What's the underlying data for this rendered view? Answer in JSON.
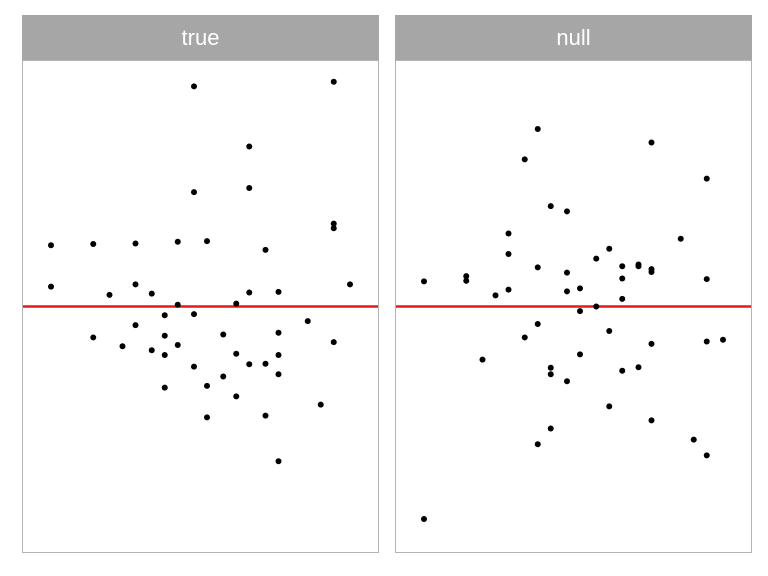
{
  "chart_data": [
    {
      "type": "scatter",
      "panel_title": "true",
      "ylim": [
        -40,
        40
      ],
      "xlim": [
        0,
        100
      ],
      "grid": false,
      "reference_line": {
        "y": 0,
        "color": "#e41a1c"
      },
      "point_color": "#000000",
      "points": [
        {
          "x": 4,
          "y": 10.5
        },
        {
          "x": 4,
          "y": 3.4
        },
        {
          "x": 17,
          "y": 10.7
        },
        {
          "x": 17,
          "y": -5.3
        },
        {
          "x": 22,
          "y": 2.0
        },
        {
          "x": 26,
          "y": -6.8
        },
        {
          "x": 30,
          "y": 10.8
        },
        {
          "x": 30,
          "y": 3.8
        },
        {
          "x": 30,
          "y": -3.2
        },
        {
          "x": 35,
          "y": 2.2
        },
        {
          "x": 35,
          "y": -7.5
        },
        {
          "x": 39,
          "y": -1.5
        },
        {
          "x": 39,
          "y": -5.0
        },
        {
          "x": 39,
          "y": -8.3
        },
        {
          "x": 39,
          "y": -13.9
        },
        {
          "x": 43,
          "y": 11.1
        },
        {
          "x": 43,
          "y": 0.3
        },
        {
          "x": 43,
          "y": -6.6
        },
        {
          "x": 48,
          "y": 37.7
        },
        {
          "x": 48,
          "y": 19.6
        },
        {
          "x": 48,
          "y": -1.3
        },
        {
          "x": 48,
          "y": -10.3
        },
        {
          "x": 52,
          "y": 11.2
        },
        {
          "x": 52,
          "y": -13.6
        },
        {
          "x": 52,
          "y": -19.0
        },
        {
          "x": 57,
          "y": -4.8
        },
        {
          "x": 57,
          "y": -12.0
        },
        {
          "x": 61,
          "y": 0.5
        },
        {
          "x": 61,
          "y": -8.1
        },
        {
          "x": 61,
          "y": -15.4
        },
        {
          "x": 65,
          "y": 27.4
        },
        {
          "x": 65,
          "y": 20.3
        },
        {
          "x": 65,
          "y": 2.4
        },
        {
          "x": 65,
          "y": -9.9
        },
        {
          "x": 70,
          "y": 9.7
        },
        {
          "x": 70,
          "y": -9.8
        },
        {
          "x": 70,
          "y": -18.7
        },
        {
          "x": 74,
          "y": 2.5
        },
        {
          "x": 74,
          "y": -4.5
        },
        {
          "x": 74,
          "y": -8.3
        },
        {
          "x": 74,
          "y": -11.6
        },
        {
          "x": 74,
          "y": -26.5
        },
        {
          "x": 83,
          "y": -2.5
        },
        {
          "x": 87,
          "y": -16.8
        },
        {
          "x": 91,
          "y": 38.5
        },
        {
          "x": 91,
          "y": 14.2
        },
        {
          "x": 91,
          "y": 13.4
        },
        {
          "x": 91,
          "y": -6.1
        },
        {
          "x": 96,
          "y": 3.8
        }
      ]
    },
    {
      "type": "scatter",
      "panel_title": "null",
      "ylim": [
        -40,
        40
      ],
      "xlim": [
        0,
        100
      ],
      "grid": false,
      "reference_line": {
        "y": 0,
        "color": "#e41a1c"
      },
      "point_color": "#000000",
      "points": [
        {
          "x": 4,
          "y": 4.3
        },
        {
          "x": 4,
          "y": -36.4
        },
        {
          "x": 17,
          "y": 5.2
        },
        {
          "x": 17,
          "y": 4.4
        },
        {
          "x": 22,
          "y": -9.1
        },
        {
          "x": 26,
          "y": 1.9
        },
        {
          "x": 30,
          "y": 12.5
        },
        {
          "x": 30,
          "y": 9.0
        },
        {
          "x": 30,
          "y": 2.9
        },
        {
          "x": 35,
          "y": 25.2
        },
        {
          "x": 35,
          "y": -5.3
        },
        {
          "x": 39,
          "y": 30.4
        },
        {
          "x": 39,
          "y": 6.7
        },
        {
          "x": 39,
          "y": -3.0
        },
        {
          "x": 39,
          "y": -23.6
        },
        {
          "x": 43,
          "y": 17.2
        },
        {
          "x": 43,
          "y": -10.5
        },
        {
          "x": 43,
          "y": -11.6
        },
        {
          "x": 43,
          "y": -20.9
        },
        {
          "x": 48,
          "y": 16.3
        },
        {
          "x": 48,
          "y": 5.8
        },
        {
          "x": 48,
          "y": 2.6
        },
        {
          "x": 48,
          "y": -12.8
        },
        {
          "x": 52,
          "y": 3.1
        },
        {
          "x": 52,
          "y": -0.8
        },
        {
          "x": 52,
          "y": -8.2
        },
        {
          "x": 57,
          "y": 8.2
        },
        {
          "x": 57,
          "y": 0.0
        },
        {
          "x": 61,
          "y": 9.9
        },
        {
          "x": 61,
          "y": -4.2
        },
        {
          "x": 61,
          "y": -17.1
        },
        {
          "x": 65,
          "y": 6.9
        },
        {
          "x": 65,
          "y": 4.8
        },
        {
          "x": 65,
          "y": 1.3
        },
        {
          "x": 65,
          "y": -11.0
        },
        {
          "x": 70,
          "y": 7.2
        },
        {
          "x": 70,
          "y": 6.9
        },
        {
          "x": 70,
          "y": -10.4
        },
        {
          "x": 74,
          "y": 28.1
        },
        {
          "x": 74,
          "y": 6.4
        },
        {
          "x": 74,
          "y": 5.9
        },
        {
          "x": 74,
          "y": -6.4
        },
        {
          "x": 74,
          "y": -19.5
        },
        {
          "x": 83,
          "y": 11.6
        },
        {
          "x": 91,
          "y": 21.9
        },
        {
          "x": 91,
          "y": 4.7
        },
        {
          "x": 91,
          "y": -6.0
        },
        {
          "x": 91,
          "y": -25.5
        },
        {
          "x": 87,
          "y": -22.8
        },
        {
          "x": 96,
          "y": -5.7
        }
      ]
    }
  ]
}
